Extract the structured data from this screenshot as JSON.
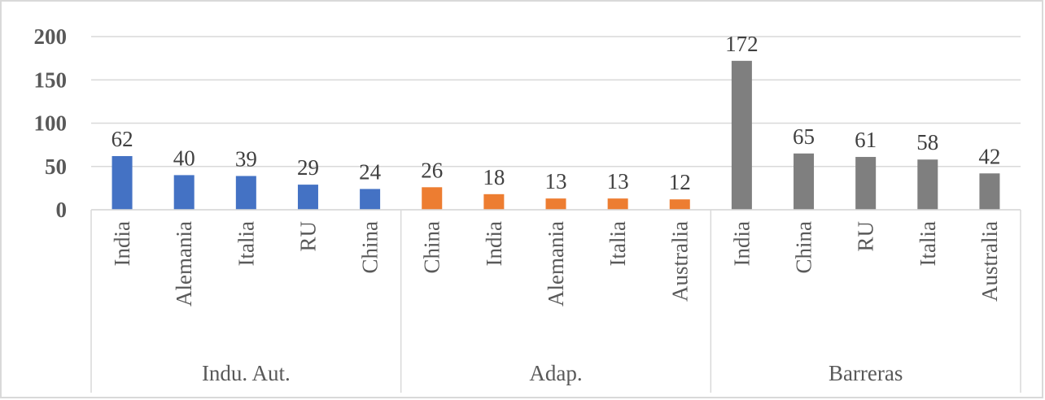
{
  "chart_data": {
    "type": "bar",
    "title": "",
    "xlabel": "",
    "ylabel": "",
    "ylim": [
      0,
      200
    ],
    "yticks": [
      "0",
      "50",
      "100",
      "150",
      "200"
    ],
    "grid": true,
    "legend": "none",
    "groups": [
      {
        "name": "Indu. Aut.",
        "color": "#4472C4",
        "categories": [
          "India",
          "Alemania",
          "Italia",
          "RU",
          "China"
        ],
        "values": [
          62,
          40,
          39,
          29,
          24
        ],
        "labels": [
          "62",
          "40",
          "39",
          "29",
          "24"
        ]
      },
      {
        "name": "Adap.",
        "color": "#ED7D31",
        "categories": [
          "China",
          "India",
          "Alemania",
          "Italia",
          "Australia"
        ],
        "values": [
          26,
          18,
          13,
          13,
          12
        ],
        "labels": [
          "26",
          "18",
          "13",
          "13",
          "12"
        ]
      },
      {
        "name": "Barreras",
        "color": "#7F7F7F",
        "categories": [
          "India",
          "China",
          "RU",
          "Italia",
          "Australia"
        ],
        "values": [
          172,
          65,
          61,
          58,
          42
        ],
        "labels": [
          "172",
          "65",
          "61",
          "58",
          "42"
        ]
      }
    ]
  }
}
